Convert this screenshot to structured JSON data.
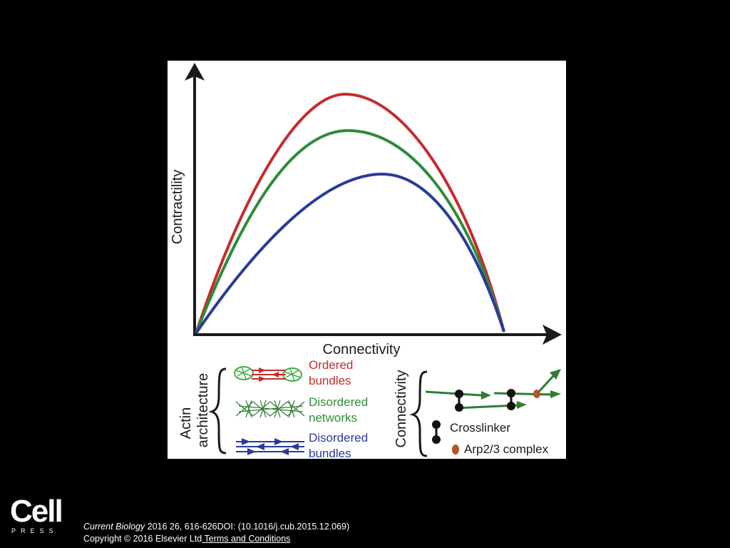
{
  "figure": {
    "y_axis_label": "Contractility",
    "x_axis_label": "Connectivity",
    "curves": [
      {
        "key": "ordered",
        "color": "#c62b2b"
      },
      {
        "key": "disordered_networks",
        "color": "#2e8b3a"
      },
      {
        "key": "disordered_bundles",
        "color": "#2a3a9a"
      }
    ],
    "legend_left": {
      "title_line1": "Actin",
      "title_line2": "architecture",
      "items": [
        {
          "line1": "Ordered",
          "line2": "bundles",
          "color": "#c62b2b"
        },
        {
          "line1": "Disordered",
          "line2": "networks",
          "color": "#2e8b3a"
        },
        {
          "line1": "Disordered",
          "line2": "bundles",
          "color": "#2a3a9a"
        }
      ]
    },
    "legend_right": {
      "title": "Connectivity",
      "crosslinker_label": "Crosslinker",
      "arp_label": "Arp2/3 complex",
      "filament_color": "#2e7d32",
      "arp_color": "#b5532a"
    }
  },
  "footer": {
    "journal": "Current Biology",
    "citation": " 2016 26, 616-626DOI: (10.1016/j.cub.2015.12.069)",
    "copyright": "Copyright © 2016 Elsevier Ltd",
    "terms_link": " Terms and Conditions"
  },
  "logo": {
    "name": "Cell",
    "press": "PRESS"
  }
}
